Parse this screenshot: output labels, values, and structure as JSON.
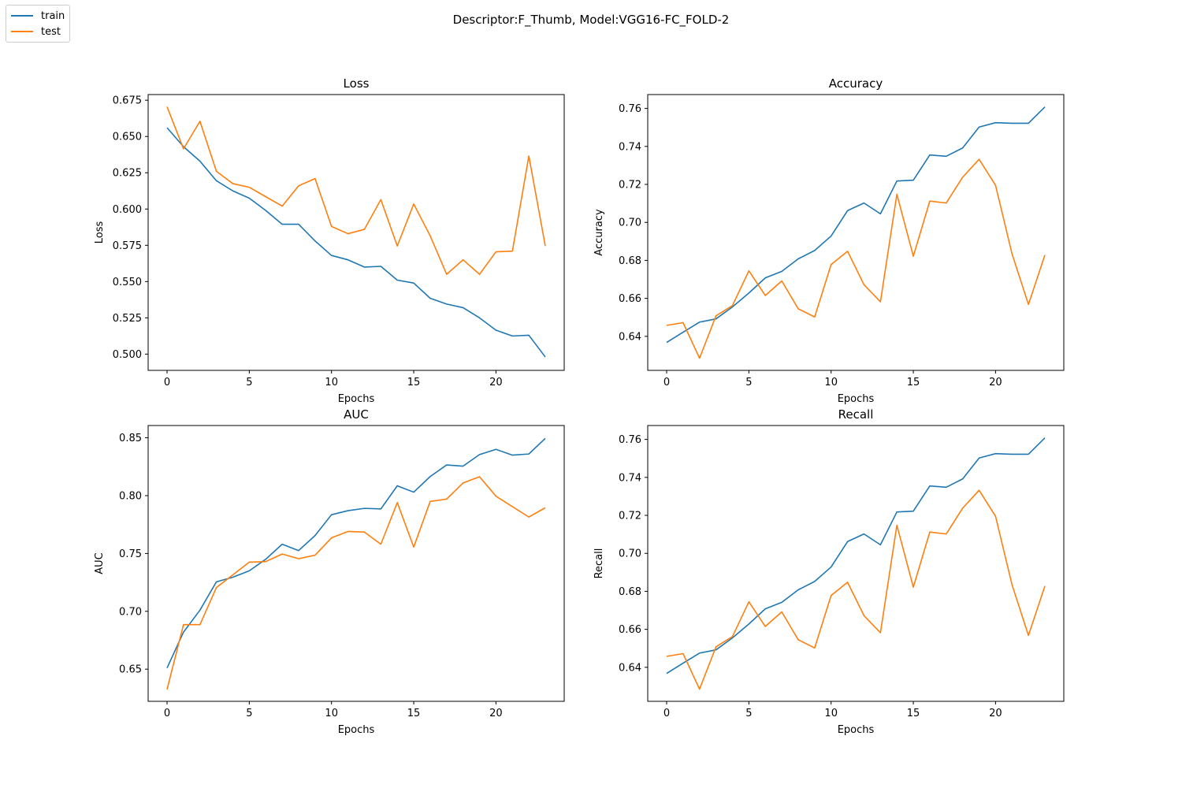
{
  "figure": {
    "suptitle": "Descriptor:F_Thumb, Model:VGG16-FC_FOLD-2",
    "legend": [
      {
        "name": "train",
        "color": "#1f77b4"
      },
      {
        "name": "test",
        "color": "#ff7f0e"
      }
    ]
  },
  "chart_data": [
    {
      "type": "line",
      "title": "Loss",
      "xlabel": "Epochs",
      "ylabel": "Loss",
      "xlim": [
        -1.15,
        24.15
      ],
      "ylim": [
        0.4888,
        0.6789
      ],
      "xticks": [
        0,
        5,
        10,
        15,
        20
      ],
      "yticks": [
        0.5,
        0.525,
        0.55,
        0.575,
        0.6,
        0.625,
        0.65,
        0.675
      ],
      "ytick_labels": [
        "0.500",
        "0.525",
        "0.550",
        "0.575",
        "0.600",
        "0.625",
        "0.650",
        "0.675"
      ],
      "grid": false,
      "x": [
        0,
        1,
        2,
        3,
        4,
        5,
        6,
        7,
        8,
        9,
        10,
        11,
        12,
        13,
        14,
        15,
        16,
        17,
        18,
        19,
        20,
        21,
        22,
        23
      ],
      "series": [
        {
          "name": "train",
          "color": "#1f77b4",
          "values": [
            0.656,
            0.643,
            0.633,
            0.6195,
            0.6125,
            0.6075,
            0.599,
            0.5895,
            0.5895,
            0.578,
            0.568,
            0.565,
            0.56,
            0.5605,
            0.551,
            0.549,
            0.5385,
            0.5345,
            0.532,
            0.525,
            0.5165,
            0.5125,
            0.513,
            0.498
          ]
        },
        {
          "name": "test",
          "color": "#ff7f0e",
          "values": [
            0.6705,
            0.6415,
            0.6605,
            0.626,
            0.6175,
            0.615,
            0.6085,
            0.602,
            0.616,
            0.621,
            0.588,
            0.583,
            0.586,
            0.6065,
            0.5745,
            0.6035,
            0.5815,
            0.555,
            0.565,
            0.555,
            0.5705,
            0.571,
            0.6365,
            0.5745
          ]
        }
      ]
    },
    {
      "type": "line",
      "title": "Accuracy",
      "xlabel": "Epochs",
      "ylabel": "Accuracy",
      "xlim": [
        -1.15,
        24.15
      ],
      "ylim": [
        0.6221,
        0.7673
      ],
      "xticks": [
        0,
        5,
        10,
        15,
        20
      ],
      "yticks": [
        0.64,
        0.66,
        0.68,
        0.7,
        0.72,
        0.74,
        0.76
      ],
      "ytick_labels": [
        "0.64",
        "0.66",
        "0.68",
        "0.70",
        "0.72",
        "0.74",
        "0.76"
      ],
      "grid": false,
      "x": [
        0,
        1,
        2,
        3,
        4,
        5,
        6,
        7,
        8,
        9,
        10,
        11,
        12,
        13,
        14,
        15,
        16,
        17,
        18,
        19,
        20,
        21,
        22,
        23
      ],
      "series": [
        {
          "name": "train",
          "color": "#1f77b4",
          "values": [
            0.6368,
            0.6422,
            0.6475,
            0.6492,
            0.6555,
            0.6628,
            0.6708,
            0.6742,
            0.6808,
            0.6852,
            0.6928,
            0.7062,
            0.7102,
            0.7045,
            0.7218,
            0.7222,
            0.7355,
            0.7348,
            0.7392,
            0.7502,
            0.7525,
            0.7522,
            0.7522,
            0.7608
          ]
        },
        {
          "name": "test",
          "color": "#ff7f0e",
          "values": [
            0.6458,
            0.6472,
            0.6285,
            0.6508,
            0.6562,
            0.6745,
            0.6615,
            0.6692,
            0.6545,
            0.6502,
            0.6778,
            0.6848,
            0.6672,
            0.6582,
            0.7148,
            0.6822,
            0.7112,
            0.7102,
            0.7238,
            0.7332,
            0.7195,
            0.6835,
            0.6568,
            0.6828
          ]
        }
      ]
    },
    {
      "type": "line",
      "title": "AUC",
      "xlabel": "Epochs",
      "ylabel": "AUC",
      "xlim": [
        -1.15,
        24.15
      ],
      "ylim": [
        0.6222,
        0.8606
      ],
      "xticks": [
        0,
        5,
        10,
        15,
        20
      ],
      "yticks": [
        0.65,
        0.7,
        0.75,
        0.8,
        0.85
      ],
      "ytick_labels": [
        "0.65",
        "0.70",
        "0.75",
        "0.80",
        "0.85"
      ],
      "grid": false,
      "x": [
        0,
        1,
        2,
        3,
        4,
        5,
        6,
        7,
        8,
        9,
        10,
        11,
        12,
        13,
        14,
        15,
        16,
        17,
        18,
        19,
        20,
        21,
        22,
        23
      ],
      "series": [
        {
          "name": "train",
          "color": "#1f77b4",
          "values": [
            0.651,
            0.682,
            0.701,
            0.7255,
            0.7295,
            0.735,
            0.745,
            0.758,
            0.7525,
            0.7655,
            0.7835,
            0.787,
            0.789,
            0.7885,
            0.8085,
            0.803,
            0.8165,
            0.8265,
            0.8255,
            0.8355,
            0.84,
            0.835,
            0.836,
            0.8495
          ]
        },
        {
          "name": "test",
          "color": "#ff7f0e",
          "values": [
            0.6325,
            0.6885,
            0.6885,
            0.7205,
            0.7315,
            0.7425,
            0.743,
            0.7495,
            0.7455,
            0.7485,
            0.7635,
            0.769,
            0.7685,
            0.758,
            0.794,
            0.7555,
            0.795,
            0.797,
            0.811,
            0.8163,
            0.7995,
            0.7905,
            0.7815,
            0.7895
          ]
        }
      ]
    },
    {
      "type": "line",
      "title": "Recall",
      "xlabel": "Epochs",
      "ylabel": "Recall",
      "xlim": [
        -1.15,
        24.15
      ],
      "ylim": [
        0.6221,
        0.7673
      ],
      "xticks": [
        0,
        5,
        10,
        15,
        20
      ],
      "yticks": [
        0.64,
        0.66,
        0.68,
        0.7,
        0.72,
        0.74,
        0.76
      ],
      "ytick_labels": [
        "0.64",
        "0.66",
        "0.68",
        "0.70",
        "0.72",
        "0.74",
        "0.76"
      ],
      "grid": false,
      "x": [
        0,
        1,
        2,
        3,
        4,
        5,
        6,
        7,
        8,
        9,
        10,
        11,
        12,
        13,
        14,
        15,
        16,
        17,
        18,
        19,
        20,
        21,
        22,
        23
      ],
      "series": [
        {
          "name": "train",
          "color": "#1f77b4",
          "values": [
            0.6368,
            0.6422,
            0.6475,
            0.6492,
            0.6555,
            0.6628,
            0.6708,
            0.6742,
            0.6808,
            0.6852,
            0.6928,
            0.7062,
            0.7102,
            0.7045,
            0.7218,
            0.7222,
            0.7355,
            0.7348,
            0.7392,
            0.7502,
            0.7525,
            0.7522,
            0.7522,
            0.7608
          ]
        },
        {
          "name": "test",
          "color": "#ff7f0e",
          "values": [
            0.6458,
            0.6472,
            0.6285,
            0.6508,
            0.6562,
            0.6745,
            0.6615,
            0.6692,
            0.6545,
            0.6502,
            0.6778,
            0.6848,
            0.6672,
            0.6582,
            0.7148,
            0.6822,
            0.7112,
            0.7102,
            0.7238,
            0.7332,
            0.7195,
            0.6835,
            0.6568,
            0.6828
          ]
        }
      ]
    }
  ]
}
